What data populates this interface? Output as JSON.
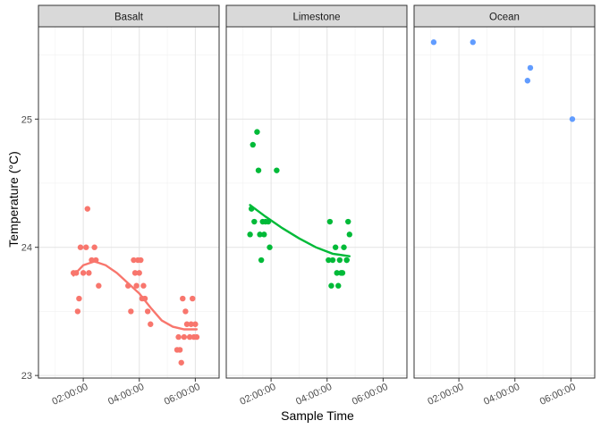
{
  "chart_data": {
    "type": "scatter",
    "xlabel": "Sample Time",
    "ylabel": "Temperature (°C)",
    "y_ticks": [
      "23",
      "24",
      "25"
    ],
    "x_ticks": [
      "02:00:00",
      "04:00:00",
      "06:00:00"
    ],
    "x_tick_hours": [
      2,
      4,
      6
    ],
    "xlim_hours": [
      0.4,
      6.85
    ],
    "ylim": [
      22.98,
      25.72
    ],
    "grid": true,
    "legend": "none",
    "panels": [
      {
        "name": "Basalt",
        "color": "#F8766D",
        "points": [
          [
            1.65,
            23.8
          ],
          [
            1.75,
            23.8
          ],
          [
            1.8,
            23.5
          ],
          [
            1.85,
            23.6
          ],
          [
            1.9,
            24.0
          ],
          [
            2.0,
            23.8
          ],
          [
            2.1,
            24.0
          ],
          [
            2.15,
            24.3
          ],
          [
            2.2,
            23.8
          ],
          [
            2.3,
            23.9
          ],
          [
            2.4,
            24.0
          ],
          [
            2.45,
            23.9
          ],
          [
            2.55,
            23.7
          ],
          [
            3.6,
            23.7
          ],
          [
            3.7,
            23.5
          ],
          [
            3.8,
            23.9
          ],
          [
            3.85,
            23.8
          ],
          [
            3.9,
            23.7
          ],
          [
            3.95,
            23.9
          ],
          [
            4.0,
            23.8
          ],
          [
            4.05,
            23.9
          ],
          [
            4.1,
            23.6
          ],
          [
            4.15,
            23.7
          ],
          [
            4.2,
            23.6
          ],
          [
            4.3,
            23.5
          ],
          [
            4.4,
            23.4
          ],
          [
            5.35,
            23.2
          ],
          [
            5.4,
            23.3
          ],
          [
            5.45,
            23.2
          ],
          [
            5.5,
            23.1
          ],
          [
            5.55,
            23.6
          ],
          [
            5.6,
            23.3
          ],
          [
            5.65,
            23.5
          ],
          [
            5.7,
            23.4
          ],
          [
            5.8,
            23.3
          ],
          [
            5.85,
            23.4
          ],
          [
            5.9,
            23.6
          ],
          [
            5.95,
            23.3
          ],
          [
            6.0,
            23.4
          ],
          [
            6.05,
            23.3
          ]
        ],
        "trend": [
          [
            1.65,
            23.78
          ],
          [
            2.0,
            23.86
          ],
          [
            2.4,
            23.89
          ],
          [
            2.8,
            23.86
          ],
          [
            3.2,
            23.8
          ],
          [
            3.6,
            23.72
          ],
          [
            4.0,
            23.64
          ],
          [
            4.4,
            23.53
          ],
          [
            4.8,
            23.43
          ],
          [
            5.2,
            23.38
          ],
          [
            5.6,
            23.36
          ],
          [
            6.05,
            23.36
          ]
        ]
      },
      {
        "name": "Limestone",
        "color": "#00BA38",
        "points": [
          [
            1.25,
            24.1
          ],
          [
            1.3,
            24.3
          ],
          [
            1.35,
            24.8
          ],
          [
            1.4,
            24.2
          ],
          [
            1.5,
            24.9
          ],
          [
            1.55,
            24.6
          ],
          [
            1.6,
            24.1
          ],
          [
            1.65,
            23.9
          ],
          [
            1.7,
            24.2
          ],
          [
            1.75,
            24.1
          ],
          [
            1.8,
            24.2
          ],
          [
            1.9,
            24.2
          ],
          [
            1.95,
            24.0
          ],
          [
            2.2,
            24.6
          ],
          [
            4.05,
            23.9
          ],
          [
            4.1,
            24.2
          ],
          [
            4.15,
            23.7
          ],
          [
            4.2,
            23.9
          ],
          [
            4.3,
            24.0
          ],
          [
            4.35,
            23.8
          ],
          [
            4.4,
            23.7
          ],
          [
            4.45,
            23.9
          ],
          [
            4.5,
            23.8
          ],
          [
            4.55,
            23.8
          ],
          [
            4.6,
            24.0
          ],
          [
            4.7,
            23.9
          ],
          [
            4.75,
            24.2
          ],
          [
            4.8,
            24.1
          ],
          [
            4.7,
            23.9
          ]
        ],
        "trend": [
          [
            1.25,
            24.33
          ],
          [
            1.8,
            24.24
          ],
          [
            2.4,
            24.15
          ],
          [
            3.0,
            24.07
          ],
          [
            3.6,
            24.0
          ],
          [
            4.2,
            23.95
          ],
          [
            4.8,
            23.93
          ]
        ]
      },
      {
        "name": "Ocean",
        "color": "#619CFF",
        "points": [
          [
            1.1,
            25.6
          ],
          [
            2.5,
            25.6
          ],
          [
            4.45,
            25.3
          ],
          [
            4.55,
            25.4
          ],
          [
            6.05,
            25.0
          ]
        ],
        "trend": []
      }
    ]
  }
}
